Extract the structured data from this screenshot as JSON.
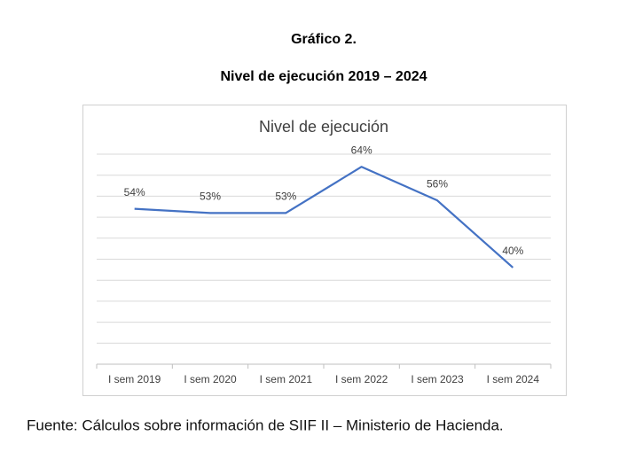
{
  "heading": "Gráfico 2.",
  "subheading": "Nivel de ejecución 2019 – 2024",
  "chart_data": {
    "type": "line",
    "title": "Nivel de ejecución",
    "categories": [
      "I sem 2019",
      "I sem 2020",
      "I sem 2021",
      "I sem 2022",
      "I sem 2023",
      "I sem 2024"
    ],
    "values": [
      54,
      53,
      53,
      64,
      56,
      40
    ],
    "value_labels": [
      "54%",
      "53%",
      "53%",
      "64%",
      "56%",
      "40%"
    ],
    "color": "#4472c4",
    "ylim": [
      17,
      67
    ],
    "yticks": [
      17,
      22,
      27,
      32,
      37,
      42,
      47,
      52,
      57,
      62,
      67
    ],
    "grid": true
  },
  "source": "Fuente: Cálculos sobre información de SIIF II – Ministerio de Hacienda."
}
